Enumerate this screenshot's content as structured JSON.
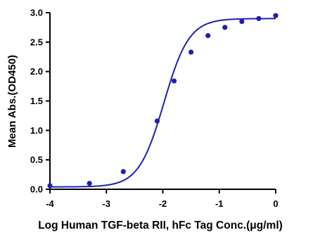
{
  "chart_data": {
    "type": "scatter",
    "title": "",
    "xlabel": "Log Human TGF-beta RII, hFc Tag Conc.(μg/ml)",
    "ylabel": "Mean Abs.(OD450)",
    "xlim": [
      -4,
      0
    ],
    "ylim": [
      0,
      3.0
    ],
    "x_ticks": [
      "-4",
      "-3",
      "-2",
      "-1",
      "0"
    ],
    "y_ticks": [
      "0.0",
      "0.5",
      "1.0",
      "1.5",
      "2.0",
      "2.5",
      "3.0"
    ],
    "grid": false,
    "series": [
      {
        "marker": "circle",
        "fit": "sigmoidal 4PL curve",
        "color": "#1f1fb4",
        "x": [
          -4.0,
          -3.3,
          -2.7,
          -2.1,
          -1.8,
          -1.5,
          -1.2,
          -0.9,
          -0.6,
          -0.3,
          0.0
        ],
        "y": [
          0.06,
          0.1,
          0.3,
          1.16,
          1.84,
          2.33,
          2.61,
          2.75,
          2.85,
          2.9,
          2.95
        ]
      }
    ]
  }
}
